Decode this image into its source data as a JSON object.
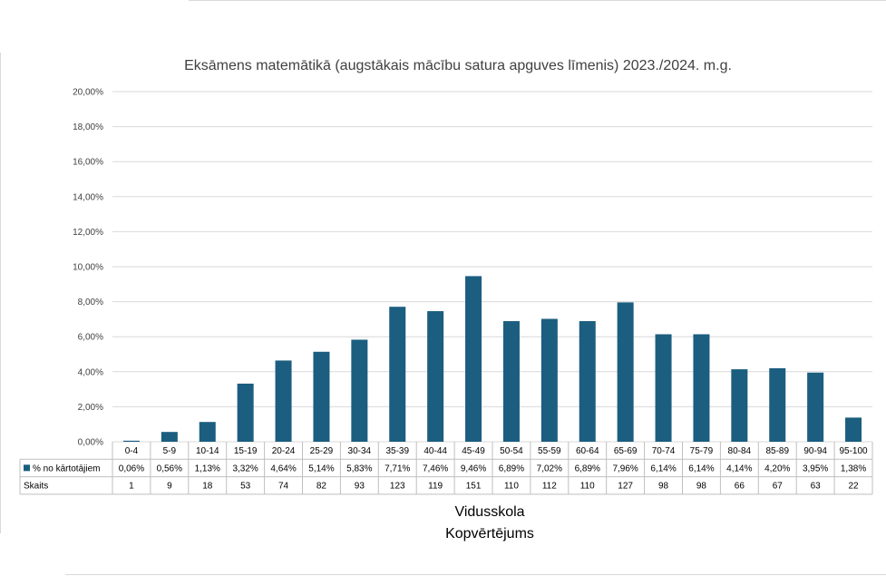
{
  "chart_data": {
    "type": "bar",
    "title": "Eksāmens matemātikā (augstākais mācību satura apguves līmenis) 2023./2024. m.g.",
    "categories": [
      "0-4",
      "5-9",
      "10-14",
      "15-19",
      "20-24",
      "25-29",
      "30-34",
      "35-39",
      "40-44",
      "45-49",
      "50-54",
      "55-59",
      "60-64",
      "65-69",
      "70-74",
      "75-79",
      "80-84",
      "85-89",
      "90-94",
      "95-100"
    ],
    "series": [
      {
        "name": "% no kārtotājiem",
        "values": [
          0.06,
          0.56,
          1.13,
          3.32,
          4.64,
          5.14,
          5.83,
          7.71,
          7.46,
          9.46,
          6.89,
          7.02,
          6.89,
          7.96,
          6.14,
          6.14,
          4.14,
          4.2,
          3.95,
          1.38
        ],
        "labels": [
          "0,06%",
          "0,56%",
          "1,13%",
          "3,32%",
          "4,64%",
          "5,14%",
          "5,83%",
          "7,71%",
          "7,46%",
          "9,46%",
          "6,89%",
          "7,02%",
          "6,89%",
          "7,96%",
          "6,14%",
          "6,14%",
          "4,14%",
          "4,20%",
          "3,95%",
          "1,38%"
        ],
        "color": "#1b5e80"
      }
    ],
    "table_rows": [
      {
        "label": "Skaits",
        "values": [
          "1",
          "9",
          "18",
          "53",
          "74",
          "82",
          "93",
          "123",
          "119",
          "151",
          "110",
          "112",
          "110",
          "127",
          "98",
          "98",
          "66",
          "67",
          "63",
          "22"
        ]
      }
    ],
    "ylim": [
      0,
      20
    ],
    "y_ticks": [
      "0,00%",
      "2,00%",
      "4,00%",
      "6,00%",
      "8,00%",
      "10,00%",
      "12,00%",
      "14,00%",
      "16,00%",
      "18,00%",
      "20,00%"
    ],
    "grid": true,
    "xlabel_lines": [
      "Vidusskola",
      "Kopvērtējums"
    ],
    "colors": {
      "bar": "#1b5e80",
      "grid": "#d9d9d9",
      "table_border": "#bfbfbf"
    }
  }
}
